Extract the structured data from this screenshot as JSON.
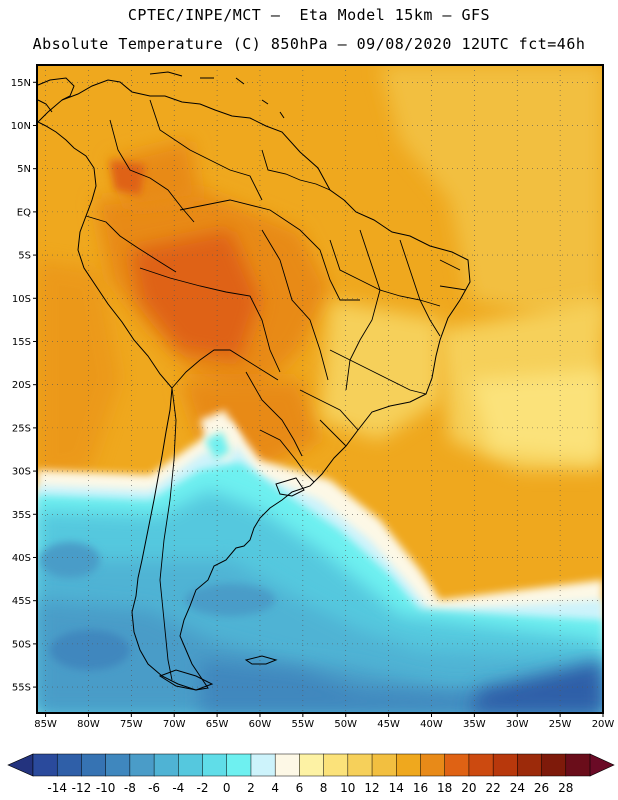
{
  "header": {
    "line1": "CPTEC/INPE/MCT –  Eta Model 15km – GFS",
    "line2": "Absolute Temperature (C) 850hPa – 09/08/2020 12UTC fct=46h"
  },
  "map": {
    "lat_range": [
      -58,
      17
    ],
    "lon_range": [
      -86,
      -20
    ],
    "lat_ticks": [
      {
        "v": 15,
        "label": "15N"
      },
      {
        "v": 10,
        "label": "10N"
      },
      {
        "v": 5,
        "label": "5N"
      },
      {
        "v": 0,
        "label": "EQ"
      },
      {
        "v": -5,
        "label": "5S"
      },
      {
        "v": -10,
        "label": "10S"
      },
      {
        "v": -15,
        "label": "15S"
      },
      {
        "v": -20,
        "label": "20S"
      },
      {
        "v": -25,
        "label": "25S"
      },
      {
        "v": -30,
        "label": "30S"
      },
      {
        "v": -35,
        "label": "35S"
      },
      {
        "v": -40,
        "label": "40S"
      },
      {
        "v": -45,
        "label": "45S"
      },
      {
        "v": -50,
        "label": "50S"
      },
      {
        "v": -55,
        "label": "55S"
      }
    ],
    "lon_ticks": [
      {
        "v": -85,
        "label": "85W"
      },
      {
        "v": -80,
        "label": "80W"
      },
      {
        "v": -75,
        "label": "75W"
      },
      {
        "v": -70,
        "label": "70W"
      },
      {
        "v": -65,
        "label": "65W"
      },
      {
        "v": -60,
        "label": "60W"
      },
      {
        "v": -55,
        "label": "55W"
      },
      {
        "v": -50,
        "label": "50W"
      },
      {
        "v": -45,
        "label": "45W"
      },
      {
        "v": -40,
        "label": "40W"
      },
      {
        "v": -35,
        "label": "35W"
      },
      {
        "v": -30,
        "label": "30W"
      },
      {
        "v": -25,
        "label": "25W"
      },
      {
        "v": -20,
        "label": "20W"
      }
    ]
  },
  "colorbar": {
    "colors": [
      "#2a4a9c",
      "#2f5fa8",
      "#3673b3",
      "#3f87be",
      "#4a9cc8",
      "#4fb3d4",
      "#55c8de",
      "#60dde8",
      "#6ef0f0",
      "#cdf3fb",
      "#fdf8e6",
      "#fdf2a4",
      "#fbe27a",
      "#f6d05a",
      "#f2bf40",
      "#efa81e",
      "#e88a18",
      "#df6214",
      "#cc4a10",
      "#b8380c",
      "#9c2a0a",
      "#7e1a0a",
      "#6a0d1a"
    ],
    "under_color": "#23337e",
    "over_color": "#6a0a26",
    "labels": [
      "-14",
      "-12",
      "-10",
      "-8",
      "-6",
      "-4",
      "-2",
      "0",
      "2",
      "4",
      "6",
      "8",
      "10",
      "12",
      "14",
      "16",
      "18",
      "20",
      "22",
      "24",
      "26",
      "28"
    ]
  }
}
